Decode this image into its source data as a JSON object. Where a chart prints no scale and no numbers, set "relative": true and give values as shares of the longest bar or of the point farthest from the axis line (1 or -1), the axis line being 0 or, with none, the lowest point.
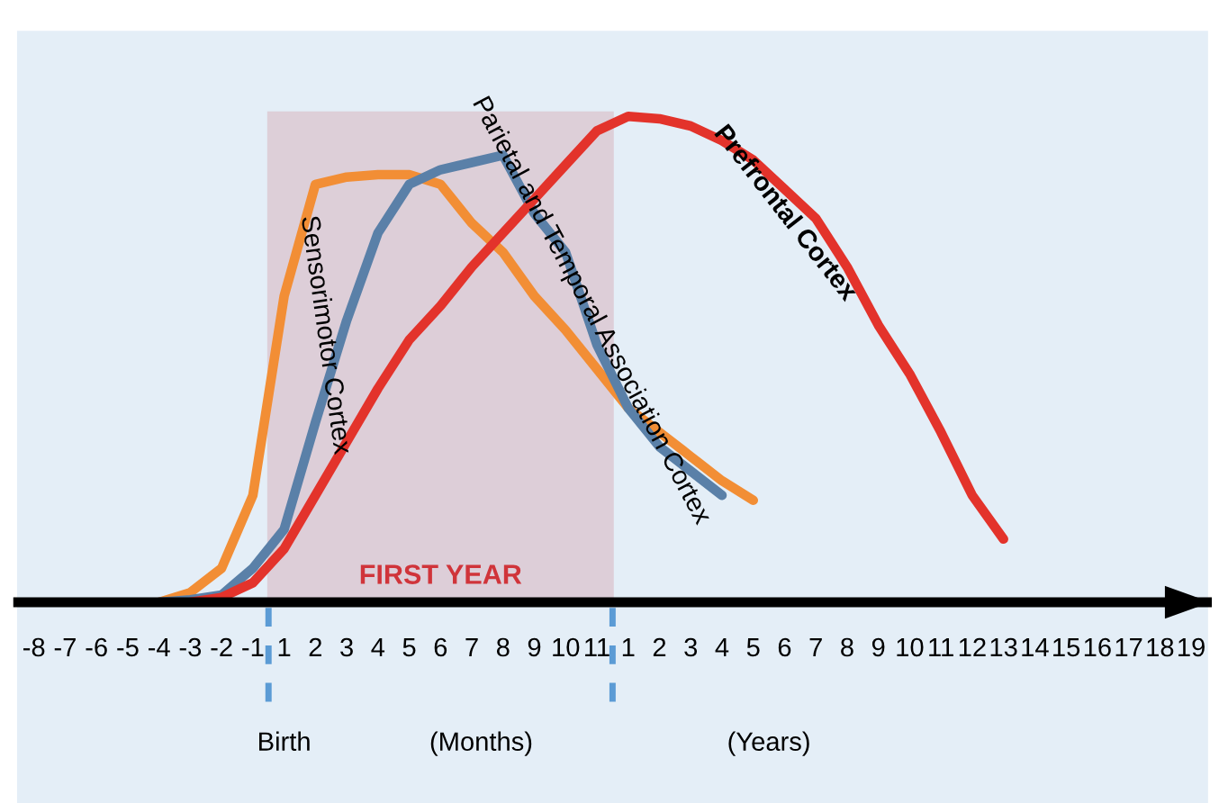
{
  "chart_data": {
    "type": "line",
    "relative": true,
    "categories": [
      "-8",
      "-7",
      "-6",
      "-5",
      "-4",
      "-3",
      "-2",
      "-1",
      "1",
      "2",
      "3",
      "4",
      "5",
      "6",
      "7",
      "8",
      "9",
      "10",
      "11",
      "1",
      "2",
      "3",
      "4",
      "5",
      "6",
      "7",
      "8",
      "9",
      "10",
      "11",
      "12",
      "13",
      "14",
      "15",
      "16",
      "17",
      "18",
      "19"
    ],
    "series": [
      {
        "name": "Sensorimotor Cortex",
        "color": "#f28e35",
        "values": [
          null,
          null,
          null,
          null,
          0,
          0.02,
          0.07,
          0.22,
          0.63,
          0.86,
          0.875,
          0.88,
          0.88,
          0.86,
          0.78,
          0.72,
          0.63,
          0.56,
          0.48,
          0.4,
          0.35,
          0.3,
          0.25,
          0.21,
          null,
          null,
          null,
          null,
          null,
          null,
          null,
          null,
          null,
          null,
          null,
          null,
          null,
          null
        ]
      },
      {
        "name": "Parietal and Temporal Association Cortex",
        "color": "#5a80a8",
        "values": [
          null,
          null,
          null,
          null,
          0,
          0.005,
          0.015,
          0.07,
          0.15,
          0.37,
          0.58,
          0.76,
          0.86,
          0.89,
          0.905,
          0.92,
          0.8,
          0.72,
          0.53,
          0.4,
          0.32,
          0.27,
          0.22,
          null,
          null,
          null,
          null,
          null,
          null,
          null,
          null,
          null,
          null,
          null,
          null,
          null,
          null,
          null
        ]
      },
      {
        "name": "Prefrontal Cortex",
        "color": "#e3332b",
        "values": [
          null,
          null,
          null,
          null,
          null,
          0,
          0.01,
          0.04,
          0.11,
          0.22,
          0.33,
          0.44,
          0.54,
          0.61,
          0.69,
          0.76,
          0.83,
          0.9,
          0.97,
          1.0,
          0.995,
          0.98,
          0.95,
          0.91,
          0.85,
          0.79,
          0.69,
          0.57,
          0.47,
          0.35,
          0.22,
          0.13,
          null,
          null,
          null,
          null,
          null,
          null
        ]
      }
    ],
    "bands": [
      {
        "axis": "x",
        "from": "1",
        "to": "11",
        "label": "FIRST YEAR",
        "color": "#dcc9d3"
      }
    ],
    "annotations": [
      "Birth",
      "(Months)",
      "(Years)"
    ],
    "grid": false,
    "legend": false
  }
}
